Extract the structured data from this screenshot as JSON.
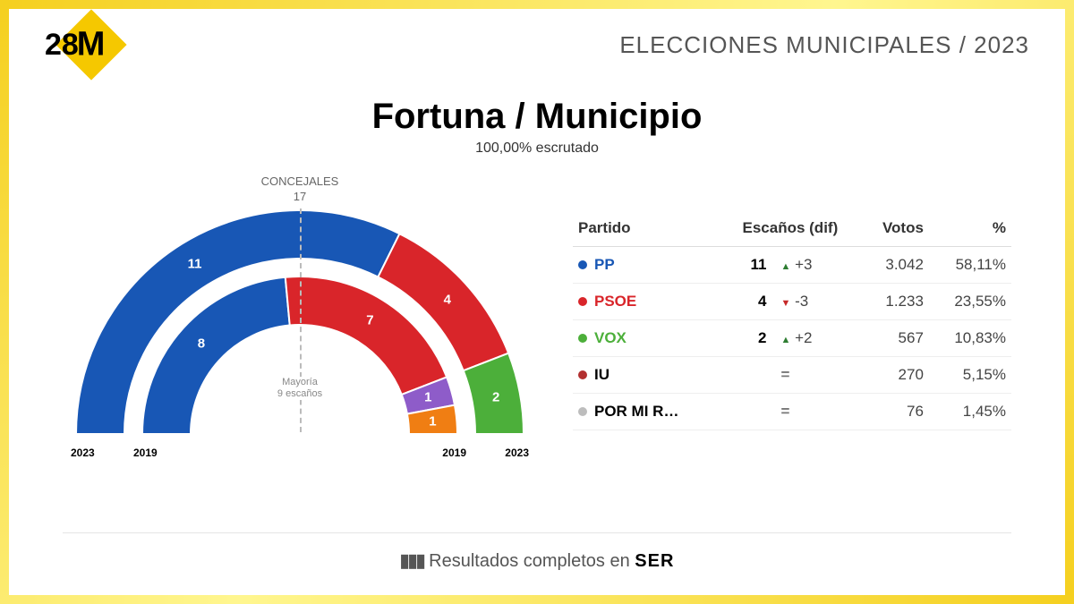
{
  "header": {
    "logo_prefix": "28",
    "logo_letter": "M",
    "title": "ELECCIONES MUNICIPALES / 2023"
  },
  "title_block": {
    "title": "Fortuna / Municipio",
    "subtitle": "100,00% escrutado"
  },
  "chart": {
    "top_label_line1": "CONCEJALES",
    "top_label_line2": "17",
    "majority_line1": "Mayoría",
    "majority_line2": "9 escaños",
    "total_seats": 17,
    "outer_year": "2023",
    "inner_year": "2019",
    "outer": {
      "radius_outer": 250,
      "radius_inner": 196,
      "segments": [
        {
          "party": "PP",
          "seats": 11,
          "color": "#1857b5"
        },
        {
          "party": "PSOE",
          "seats": 4,
          "color": "#d9252a"
        },
        {
          "party": "VOX",
          "seats": 2,
          "color": "#4caf3a"
        }
      ]
    },
    "inner": {
      "radius_outer": 176,
      "radius_inner": 122,
      "segments": [
        {
          "party": "PP",
          "seats": 8,
          "color": "#1857b5"
        },
        {
          "party": "PSOE",
          "seats": 7,
          "color": "#d9252a"
        },
        {
          "party": "Purple",
          "seats": 1,
          "color": "#8e5cc9"
        },
        {
          "party": "Orange",
          "seats": 1,
          "color": "#f07e13"
        }
      ]
    }
  },
  "table": {
    "headers": {
      "party": "Partido",
      "seats": "Escaños (dif)",
      "votes": "Votos",
      "pct": "%"
    },
    "rows": [
      {
        "color": "#1857b5",
        "name_color": "#1857b5",
        "name": "PP",
        "seats": "11",
        "trend": "up",
        "diff": "+3",
        "votes": "3.042",
        "pct": "58,11%"
      },
      {
        "color": "#d9252a",
        "name_color": "#d9252a",
        "name": "PSOE",
        "seats": "4",
        "trend": "down",
        "diff": "-3",
        "votes": "1.233",
        "pct": "23,55%"
      },
      {
        "color": "#4caf3a",
        "name_color": "#4caf3a",
        "name": "VOX",
        "seats": "2",
        "trend": "up",
        "diff": "+2",
        "votes": "567",
        "pct": "10,83%"
      },
      {
        "color": "#b23030",
        "name_color": "#000",
        "name": "IU",
        "seats": "",
        "trend": "eq",
        "diff": "",
        "votes": "270",
        "pct": "5,15%"
      },
      {
        "color": "#bdbdbd",
        "name_color": "#000",
        "name": "POR MI R…",
        "seats": "",
        "trend": "eq",
        "diff": "",
        "votes": "76",
        "pct": "1,45%"
      }
    ]
  },
  "footer": {
    "text": "Resultados completos en",
    "brand": "SER"
  }
}
